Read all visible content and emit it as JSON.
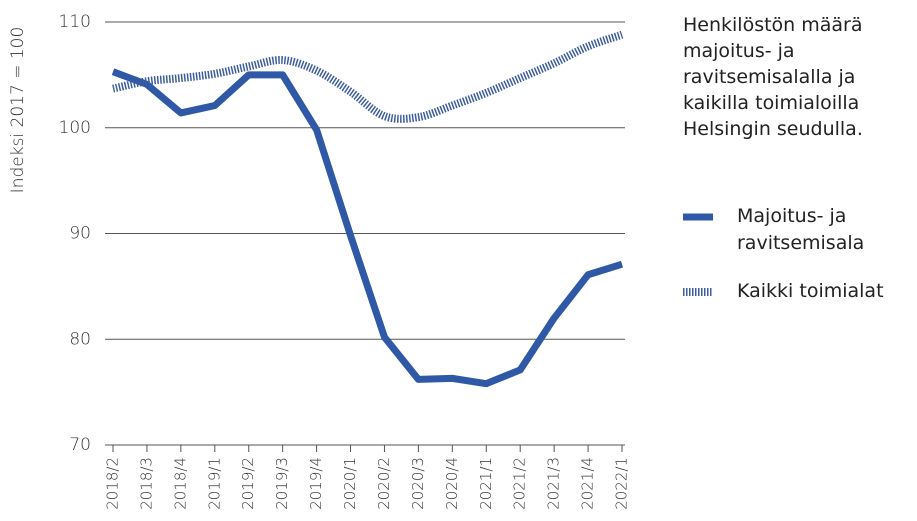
{
  "chart_data": {
    "type": "line",
    "title": "Henkilöstön määrä majoitus- ja ravitsemisalalla ja kaikilla toimialoilla Helsingin seudulla.",
    "ylabel": "Indeksi 2017 = 100",
    "categories": [
      "2018/2",
      "2018/3",
      "2018/4",
      "2019/1",
      "2019/2",
      "2019/3",
      "2019/4",
      "2020/1",
      "2020/2",
      "2020/3",
      "2020/4",
      "2021/1",
      "2021/2",
      "2021/3",
      "2021/4",
      "2022/1"
    ],
    "series": [
      {
        "name": "Majoitus- ja ravitsemisala",
        "color": "#2f58a6",
        "style": "solid",
        "values": [
          105.3,
          104.1,
          101.4,
          102.1,
          105.0,
          105.0,
          99.8,
          89.8,
          80.2,
          76.2,
          76.3,
          75.8,
          77.1,
          82.0,
          86.1,
          87.1
        ]
      },
      {
        "name": "Kaikki toimialat",
        "color": "#3d5c9f",
        "style": "hatched",
        "values": [
          103.7,
          104.4,
          104.7,
          105.1,
          105.8,
          106.4,
          105.4,
          103.4,
          101.1,
          101.0,
          102.1,
          103.3,
          104.7,
          106.1,
          107.7,
          108.8
        ]
      }
    ],
    "ylim": [
      70,
      110
    ],
    "yticks": [
      70,
      80,
      90,
      100,
      110
    ],
    "grid": true,
    "legend": "right"
  }
}
